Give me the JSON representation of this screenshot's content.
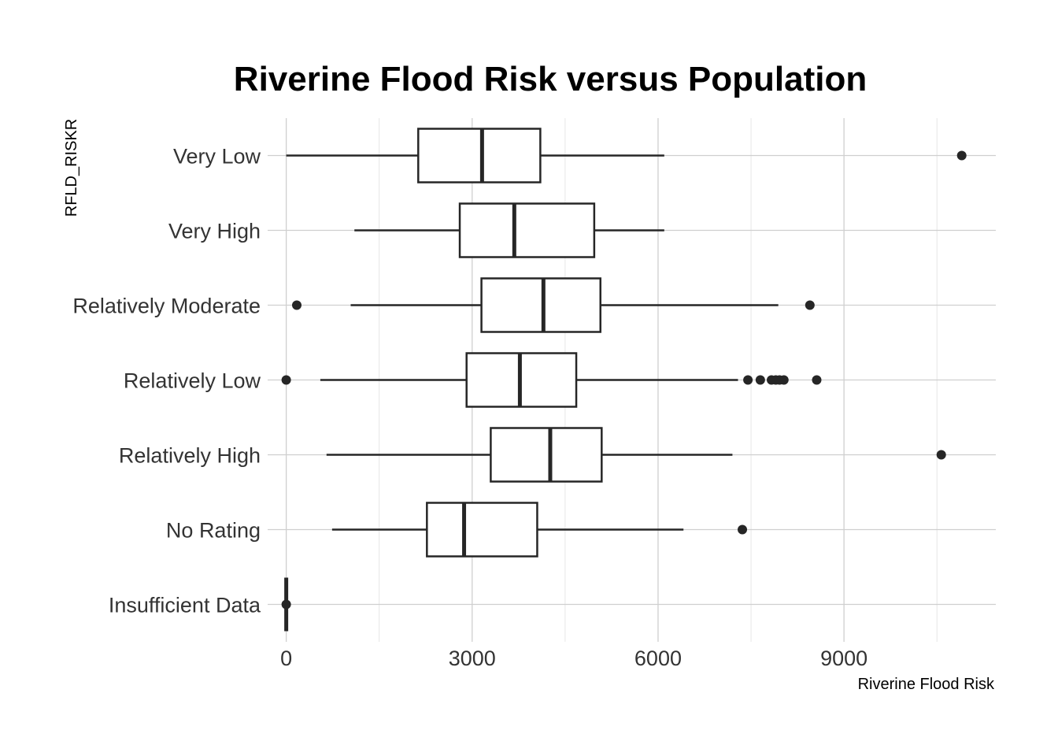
{
  "chart_data": {
    "type": "boxplot",
    "orientation": "horizontal",
    "title": "Riverine Flood Risk versus Population",
    "xlabel": "Riverine Flood Risk",
    "ylabel": "RFLD_RISKR",
    "xlim": [
      -300,
      11450
    ],
    "x_ticks": [
      0,
      3000,
      6000,
      9000
    ],
    "x_minor_ticks": [
      1500,
      4500,
      7500,
      10500
    ],
    "grid": true,
    "categories": [
      "Very Low",
      "Very High",
      "Relatively Moderate",
      "Relatively Low",
      "Relatively High",
      "No Rating",
      "Insufficient Data"
    ],
    "boxes": [
      {
        "category": "Very Low",
        "whisker_low": 0,
        "q1": 2130,
        "median": 3160,
        "q3": 4100,
        "whisker_high": 6100,
        "outliers": [
          10900
        ]
      },
      {
        "category": "Very High",
        "whisker_low": 1100,
        "q1": 2800,
        "median": 3680,
        "q3": 4970,
        "whisker_high": 6100,
        "outliers": []
      },
      {
        "category": "Relatively Moderate",
        "whisker_low": 1040,
        "q1": 3150,
        "median": 4150,
        "q3": 5070,
        "whisker_high": 7940,
        "outliers": [
          170,
          8450
        ]
      },
      {
        "category": "Relatively Low",
        "whisker_low": 550,
        "q1": 2910,
        "median": 3770,
        "q3": 4680,
        "whisker_high": 7290,
        "outliers": [
          0,
          7450,
          7650,
          7830,
          7900,
          7960,
          8030,
          8560
        ]
      },
      {
        "category": "Relatively High",
        "whisker_low": 650,
        "q1": 3300,
        "median": 4260,
        "q3": 5090,
        "whisker_high": 7200,
        "outliers": [
          10570
        ]
      },
      {
        "category": "No Rating",
        "whisker_low": 740,
        "q1": 2270,
        "median": 2870,
        "q3": 4050,
        "whisker_high": 6410,
        "outliers": [
          7360
        ]
      },
      {
        "category": "Insufficient Data",
        "whisker_low": 0,
        "q1": 0,
        "median": 0,
        "q3": 0,
        "whisker_high": 0,
        "outliers": [
          0
        ]
      }
    ]
  },
  "colors": {
    "box_stroke": "#262626",
    "point_fill": "#262626",
    "grid_major": "#cfcfcf",
    "grid_minor": "#e6e6e6",
    "label_text": "#333333"
  }
}
